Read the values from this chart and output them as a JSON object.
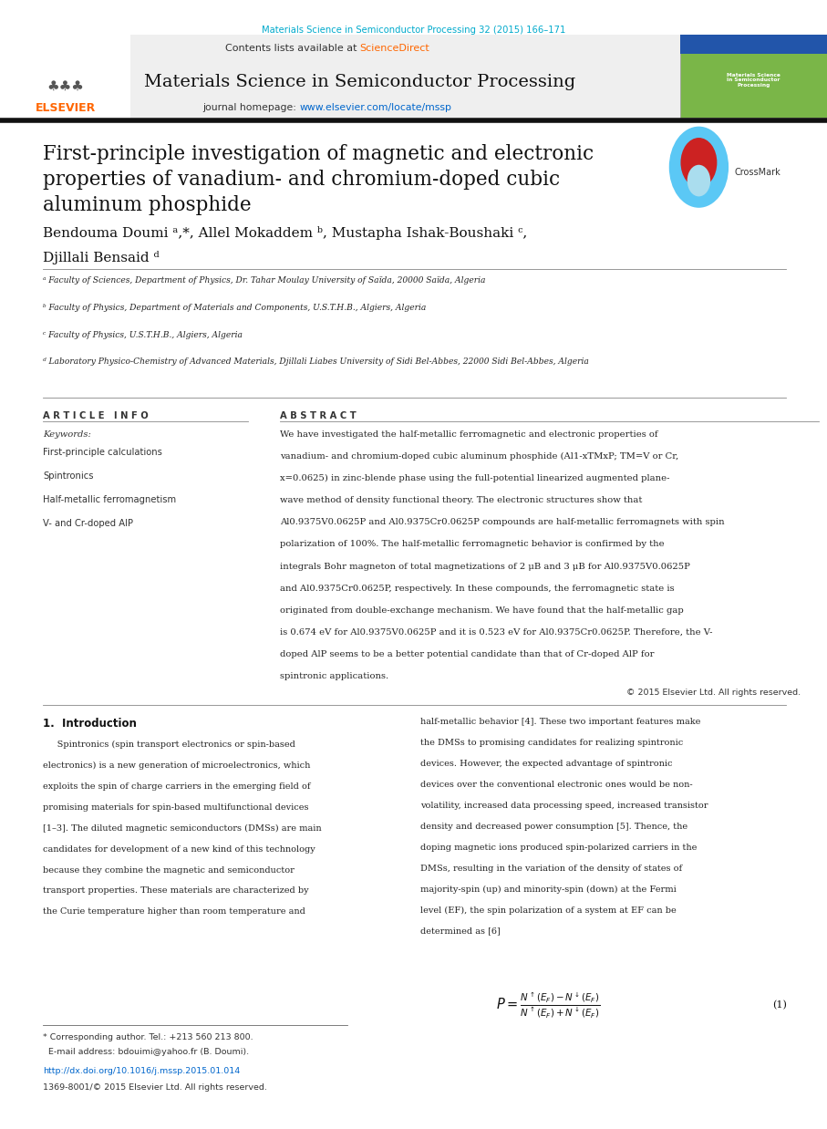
{
  "fig_width": 9.07,
  "fig_height": 12.38,
  "dpi": 100,
  "bg_color": "#ffffff",
  "journal_ref": "Materials Science in Semiconductor Processing 32 (2015) 166–171",
  "journal_ref_color": "#00aacc",
  "header_bg": "#efefef",
  "journal_title": "Materials Science in Semiconductor Processing",
  "contents_text": "Contents lists available at ",
  "sciencedirect_text": "ScienceDirect",
  "sciencedirect_color": "#ff6600",
  "homepage_text": "journal homepage: ",
  "homepage_url": "www.elsevier.com/locate/mssp",
  "homepage_url_color": "#0066cc",
  "elsevier_orange": "#ff6600",
  "paper_title": "First-principle investigation of magnetic and electronic\nproperties of vanadium- and chromium-doped cubic\naluminum phosphide",
  "authors_line1": "Bendouma Doumi ᵃ,*, Allel Mokaddem ᵇ, Mustapha Ishak-Boushaki ᶜ,",
  "authors_line2": "Djillali Bensaid ᵈ",
  "affil_a": "ᵃ Faculty of Sciences, Department of Physics, Dr. Tahar Moulay University of Saïda, 20000 Saïda, Algeria",
  "affil_b": "ᵇ Faculty of Physics, Department of Materials and Components, U.S.T.H.B., Algiers, Algeria",
  "affil_c": "ᶜ Faculty of Physics, U.S.T.H.B., Algiers, Algeria",
  "affil_d": "ᵈ Laboratory Physico-Chemistry of Advanced Materials, Djillali Liabes University of Sidi Bel-Abbes, 22000 Sidi Bel-Abbes, Algeria",
  "article_info_header": "A R T I C L E   I N F O",
  "keywords_label": "Keywords:",
  "keywords": [
    "First-principle calculations",
    "Spintronics",
    "Half-metallic ferromagnetism",
    "V- and Cr-doped AlP"
  ],
  "abstract_header": "A B S T R A C T",
  "abstract_text": "We have investigated the half-metallic ferromagnetic and electronic properties of\nvanadium- and chromium-doped cubic aluminum phosphide (Al1-xTMxP; TM=V or Cr,\nx=0.0625) in zinc-blende phase using the full-potential linearized augmented plane-\nwave method of density functional theory. The electronic structures show that\nAl0.9375V0.0625P and Al0.9375Cr0.0625P compounds are half-metallic ferromagnets with spin\npolarization of 100%. The half-metallic ferromagnetic behavior is confirmed by the\nintegrals Bohr magneton of total magnetizations of 2 μB and 3 μB for Al0.9375V0.0625P\nand Al0.9375Cr0.0625P, respectively. In these compounds, the ferromagnetic state is\noriginated from double-exchange mechanism. We have found that the half-metallic gap\nis 0.674 eV for Al0.9375V0.0625P and it is 0.523 eV for Al0.9375Cr0.0625P. Therefore, the V-\ndoped AlP seems to be a better potential candidate than that of Cr-doped AlP for\nspintronic applications.",
  "copyright_text": "© 2015 Elsevier Ltd. All rights reserved.",
  "intro_header": "1.  Introduction",
  "intro_col1_lines": [
    "     Spintronics (spin transport electronics or spin-based",
    "electronics) is a new generation of microelectronics, which",
    "exploits the spin of charge carriers in the emerging field of",
    "promising materials for spin-based multifunctional devices",
    "[1–3]. The diluted magnetic semiconductors (DMSs) are main",
    "candidates for development of a new kind of this technology",
    "because they combine the magnetic and semiconductor",
    "transport properties. These materials are characterized by",
    "the Curie temperature higher than room temperature and"
  ],
  "intro_col2_lines": [
    "half-metallic behavior [4]. These two important features make",
    "the DMSs to promising candidates for realizing spintronic",
    "devices. However, the expected advantage of spintronic",
    "devices over the conventional electronic ones would be non-",
    "volatility, increased data processing speed, increased transistor",
    "density and decreased power consumption [5]. Thence, the",
    "doping magnetic ions produced spin-polarized carriers in the",
    "DMSs, resulting in the variation of the density of states of",
    "majority-spin (up) and minority-spin (down) at the Fermi",
    "level (EF), the spin polarization of a system at EF can be",
    "determined as [6]"
  ],
  "footnote_line1": "* Corresponding author. Tel.: +213 560 213 800.",
  "footnote_line2": "  E-mail address: bdouimi@yahoo.fr (B. Doumi).",
  "doi_text": "http://dx.doi.org/10.1016/j.mssp.2015.01.014",
  "doi_color": "#0066cc",
  "issn_text": "1369-8001/© 2015 Elsevier Ltd. All rights reserved.",
  "eq_label": "(1)"
}
